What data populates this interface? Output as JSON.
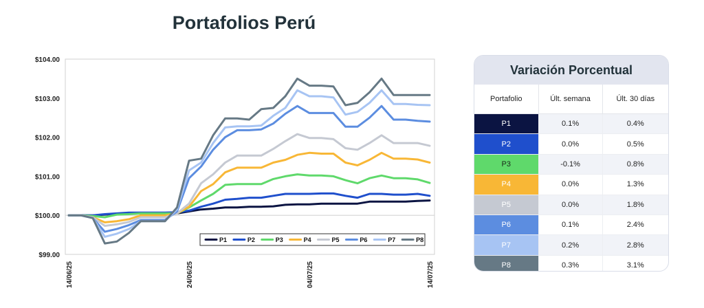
{
  "title": "Portafolios Perú",
  "chart_data": {
    "type": "line",
    "x": [
      "14/06/25",
      "15/06/25",
      "16/06/25",
      "17/06/25",
      "18/06/25",
      "19/06/25",
      "20/06/25",
      "21/06/25",
      "22/06/25",
      "23/06/25",
      "24/06/25",
      "25/06/25",
      "26/06/25",
      "27/06/25",
      "28/06/25",
      "29/06/25",
      "30/06/25",
      "01/07/25",
      "02/07/25",
      "03/07/25",
      "04/07/25",
      "05/07/25",
      "06/07/25",
      "07/07/25",
      "08/07/25",
      "09/07/25",
      "10/07/25",
      "11/07/25",
      "12/07/25",
      "13/07/25",
      "14/07/25"
    ],
    "xticks": [
      "14/06/25",
      "24/06/25",
      "04/07/25",
      "14/07/25"
    ],
    "ylim": [
      99.0,
      104.0
    ],
    "yticks": [
      99.0,
      100.0,
      101.0,
      102.0,
      103.0,
      104.0
    ],
    "ytick_labels": [
      "$99.00",
      "$100.00",
      "$101.00",
      "$102.00",
      "$103.00",
      "$104.00"
    ],
    "grid": false,
    "legend": "bottom-right",
    "series": [
      {
        "name": "P1",
        "color": "#0b1442",
        "values": [
          100.0,
          100.0,
          100.0,
          100.02,
          100.04,
          100.05,
          100.05,
          100.05,
          100.05,
          100.05,
          100.1,
          100.15,
          100.17,
          100.2,
          100.2,
          100.22,
          100.22,
          100.23,
          100.27,
          100.28,
          100.28,
          100.3,
          100.3,
          100.3,
          100.3,
          100.35,
          100.35,
          100.35,
          100.35,
          100.37,
          100.38
        ]
      },
      {
        "name": "P2",
        "color": "#1f4fcc",
        "values": [
          100.0,
          100.0,
          100.0,
          100.03,
          100.05,
          100.07,
          100.07,
          100.07,
          100.07,
          100.08,
          100.12,
          100.22,
          100.3,
          100.4,
          100.42,
          100.45,
          100.45,
          100.5,
          100.55,
          100.55,
          100.55,
          100.56,
          100.56,
          100.5,
          100.45,
          100.55,
          100.55,
          100.53,
          100.53,
          100.55,
          100.5
        ]
      },
      {
        "name": "P3",
        "color": "#5fd96b",
        "values": [
          100.0,
          100.0,
          99.98,
          99.95,
          100.02,
          100.03,
          100.05,
          100.05,
          100.05,
          100.05,
          100.2,
          100.38,
          100.55,
          100.78,
          100.8,
          100.8,
          100.8,
          100.93,
          101.0,
          101.05,
          101.02,
          101.02,
          101.0,
          100.9,
          100.82,
          100.95,
          101.02,
          100.95,
          100.95,
          100.92,
          100.83
        ]
      },
      {
        "name": "P4",
        "color": "#f8b736",
        "values": [
          100.0,
          100.0,
          99.95,
          99.82,
          99.85,
          99.9,
          100.0,
          100.0,
          100.0,
          100.05,
          100.22,
          100.62,
          100.8,
          101.1,
          101.22,
          101.22,
          101.22,
          101.35,
          101.42,
          101.55,
          101.6,
          101.58,
          101.58,
          101.35,
          101.28,
          101.42,
          101.6,
          101.45,
          101.45,
          101.43,
          101.35
        ]
      },
      {
        "name": "P5",
        "color": "#c5c9d2",
        "values": [
          100.0,
          100.0,
          99.95,
          99.73,
          99.77,
          99.83,
          99.95,
          99.95,
          99.95,
          100.05,
          100.3,
          100.82,
          101.05,
          101.35,
          101.53,
          101.53,
          101.53,
          101.7,
          101.9,
          102.08,
          101.98,
          101.98,
          101.95,
          101.72,
          101.68,
          101.85,
          102.05,
          101.85,
          101.85,
          101.85,
          101.78
        ]
      },
      {
        "name": "P6",
        "color": "#5c8de0",
        "values": [
          100.0,
          100.0,
          99.93,
          99.58,
          99.65,
          99.75,
          99.88,
          99.88,
          99.88,
          100.1,
          100.95,
          101.25,
          101.68,
          102.0,
          102.18,
          102.18,
          102.2,
          102.35,
          102.6,
          102.8,
          102.62,
          102.62,
          102.62,
          102.27,
          102.27,
          102.5,
          102.8,
          102.45,
          102.45,
          102.42,
          102.4
        ]
      },
      {
        "name": "P7",
        "color": "#a7c4f3",
        "values": [
          100.0,
          100.0,
          99.93,
          99.45,
          99.53,
          99.65,
          99.85,
          99.85,
          99.85,
          100.15,
          101.15,
          101.35,
          101.85,
          102.25,
          102.28,
          102.28,
          102.3,
          102.55,
          102.75,
          103.2,
          103.05,
          103.05,
          103.02,
          102.58,
          102.65,
          102.88,
          103.2,
          102.85,
          102.85,
          102.83,
          102.82
        ]
      },
      {
        "name": "P8",
        "color": "#667985",
        "values": [
          100.0,
          100.0,
          99.93,
          99.28,
          99.33,
          99.55,
          99.85,
          99.85,
          99.85,
          100.2,
          101.4,
          101.45,
          102.05,
          102.48,
          102.48,
          102.45,
          102.72,
          102.75,
          103.05,
          103.5,
          103.32,
          103.32,
          103.3,
          102.82,
          102.88,
          103.15,
          103.5,
          103.08,
          103.08,
          103.08,
          103.08
        ]
      }
    ]
  },
  "table": {
    "title": "Variación Porcentual",
    "headers": [
      "Portafolio",
      "Últ. semana",
      "Últ. 30 días"
    ],
    "rows": [
      {
        "name": "P1",
        "week": "0.1%",
        "month": "0.4%",
        "color": "#0b1442",
        "text": "#ffffff"
      },
      {
        "name": "P2",
        "week": "0.0%",
        "month": "0.5%",
        "color": "#1f4fcc",
        "text": "#ffffff"
      },
      {
        "name": "P3",
        "week": "-0.1%",
        "month": "0.8%",
        "color": "#5fd96b",
        "text": "#1a2a1a"
      },
      {
        "name": "P4",
        "week": "0.0%",
        "month": "1.3%",
        "color": "#f8b736",
        "text": "#ffffff"
      },
      {
        "name": "P5",
        "week": "0.0%",
        "month": "1.8%",
        "color": "#c5c9d2",
        "text": "#ffffff"
      },
      {
        "name": "P6",
        "week": "0.1%",
        "month": "2.4%",
        "color": "#5c8de0",
        "text": "#ffffff"
      },
      {
        "name": "P7",
        "week": "0.2%",
        "month": "2.8%",
        "color": "#a7c4f3",
        "text": "#ffffff"
      },
      {
        "name": "P8",
        "week": "0.3%",
        "month": "3.1%",
        "color": "#667985",
        "text": "#ffffff"
      }
    ]
  }
}
